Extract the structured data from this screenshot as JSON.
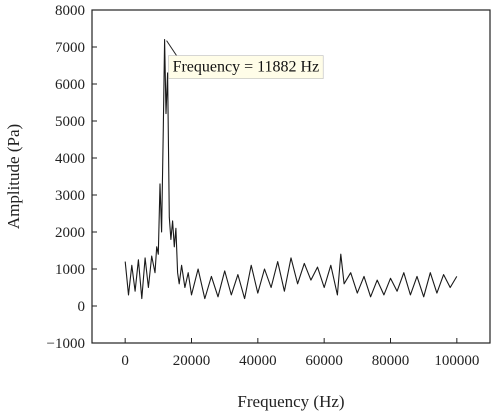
{
  "chart_data": {
    "type": "line",
    "title": "",
    "xlabel": "Frequency (Hz)",
    "ylabel": "Amplitude (Pa)",
    "xlim": [
      -10000,
      110000
    ],
    "ylim": [
      -1000,
      8000
    ],
    "x_ticks": [
      0,
      20000,
      40000,
      60000,
      80000,
      100000
    ],
    "x_tick_labels": [
      "0",
      "20000",
      "40000",
      "60000",
      "80000",
      "100000"
    ],
    "y_ticks": [
      -1000,
      0,
      1000,
      2000,
      3000,
      4000,
      5000,
      6000,
      7000,
      8000
    ],
    "y_tick_labels": [
      "−1000",
      "0",
      "1000",
      "2000",
      "3000",
      "4000",
      "5000",
      "6000",
      "7000",
      "8000"
    ],
    "grid": false,
    "legend": "none",
    "line_color": "#1a1a1a",
    "annotations": [
      {
        "text": "Frequency = 11882 Hz",
        "x": 11882,
        "y": 7200
      }
    ],
    "series": [
      {
        "x": [
          0,
          1000,
          2000,
          3000,
          4000,
          5000,
          6000,
          7000,
          8000,
          9000,
          9500,
          10000,
          10500,
          11000,
          11500,
          11882,
          12300,
          12800,
          13300,
          13800,
          14300,
          14800,
          15300,
          15800,
          16300,
          17000,
          18000,
          19000,
          20000,
          22000,
          24000,
          26000,
          28000,
          30000,
          32000,
          34000,
          36000,
          38000,
          40000,
          42000,
          44000,
          46000,
          48000,
          50000,
          52000,
          54000,
          56000,
          58000,
          60000,
          62000,
          64000,
          65000,
          66000,
          68000,
          70000,
          72000,
          74000,
          76000,
          78000,
          80000,
          82000,
          84000,
          86000,
          88000,
          90000,
          92000,
          94000,
          96000,
          98000,
          100000
        ],
        "y": [
          1200,
          300,
          1100,
          400,
          1250,
          200,
          1300,
          500,
          1350,
          900,
          1600,
          1400,
          3300,
          2000,
          4800,
          7200,
          5200,
          6300,
          2400,
          1800,
          2300,
          1600,
          2100,
          900,
          600,
          1100,
          500,
          900,
          300,
          1000,
          200,
          800,
          250,
          950,
          300,
          850,
          200,
          1100,
          350,
          1000,
          500,
          1200,
          400,
          1300,
          600,
          1150,
          700,
          1050,
          500,
          1100,
          300,
          1400,
          600,
          900,
          350,
          800,
          250,
          700,
          300,
          750,
          400,
          900,
          300,
          800,
          250,
          900,
          350,
          850,
          500,
          800
        ]
      }
    ]
  }
}
